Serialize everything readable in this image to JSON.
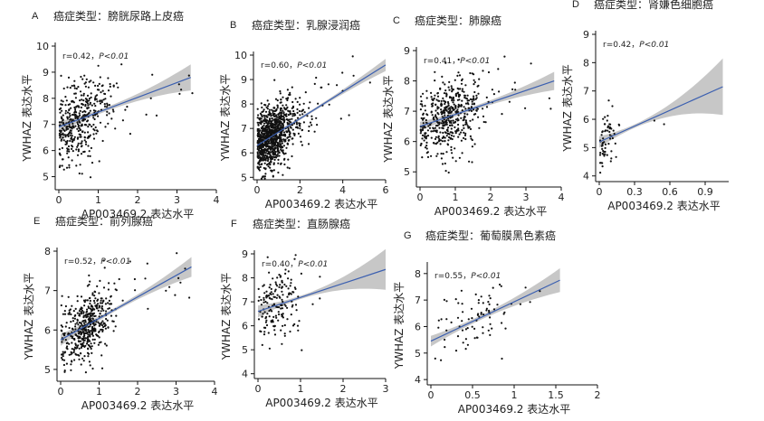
{
  "figure": {
    "background": "#ffffff"
  },
  "style": {
    "point_color": "#111111",
    "line_color": "#3b5fb0",
    "band_color": "#bdbdbd"
  },
  "chart_data": [
    {
      "panel": "A",
      "type": "scatter",
      "title": "癌症类型：膀胱尿路上皮癌",
      "xlabel": "AP003469.2 表达水平",
      "ylabel": "YWHAZ 表达水平",
      "xlim": [
        0,
        4
      ],
      "ylim": [
        4.5,
        10
      ],
      "xticks": [
        0,
        1,
        2,
        3,
        4
      ],
      "yticks": [
        5,
        6,
        7,
        8,
        9,
        10
      ],
      "stat_r": "r=0.42",
      "stat_sep": "，",
      "stat_p": "P<0.01",
      "fit": {
        "x0": 0,
        "y0": 6.9,
        "x1": 3.35,
        "y1": 8.8
      },
      "band": {
        "half_width_start": 0.2,
        "half_width_mid": 0.1,
        "half_width_end": 0.5
      },
      "points": {
        "n": 420,
        "x_mean": 0.5,
        "x_sd": 0.55,
        "x_max": 3.4,
        "y_sd": 0.75,
        "seed": 11
      }
    },
    {
      "panel": "B",
      "type": "scatter",
      "title": "癌症类型：乳腺浸润癌",
      "xlabel": "AP003469.2 表达水平",
      "ylabel": "YWHAZ 表达水平",
      "xlim": [
        0,
        6
      ],
      "ylim": [
        4.9,
        10
      ],
      "xticks": [
        0,
        2,
        4,
        6
      ],
      "yticks": [
        5,
        6,
        7,
        8,
        9,
        10
      ],
      "stat_r": "r=0.60",
      "stat_sep": "，",
      "stat_p": "P<0.01",
      "fit": {
        "x0": 0,
        "y0": 6.3,
        "x1": 6,
        "y1": 9.6
      },
      "band": {
        "half_width_start": 0.15,
        "half_width_mid": 0.06,
        "half_width_end": 0.25
      },
      "points": {
        "n": 1000,
        "x_mean": 0.7,
        "x_sd": 0.75,
        "x_max": 5.5,
        "y_sd": 0.6,
        "seed": 22
      }
    },
    {
      "panel": "C",
      "type": "scatter",
      "title": "癌症类型：肺腺癌",
      "xlabel": "AP003469.2 表达水平",
      "ylabel": "YWHAZ 表达水平",
      "xlim": [
        0,
        4
      ],
      "ylim": [
        4.5,
        9
      ],
      "xticks": [
        0,
        1,
        2,
        3,
        4
      ],
      "yticks": [
        5,
        6,
        7,
        8,
        9
      ],
      "stat_r": "r=0.41",
      "stat_sep": "，",
      "stat_p": "P<0.01",
      "fit": {
        "x0": 0,
        "y0": 6.5,
        "x1": 3.8,
        "y1": 8.0
      },
      "band": {
        "half_width_start": 0.15,
        "half_width_mid": 0.07,
        "half_width_end": 0.3
      },
      "points": {
        "n": 500,
        "x_mean": 0.8,
        "x_sd": 0.65,
        "x_max": 3.8,
        "y_sd": 0.6,
        "seed": 33
      }
    },
    {
      "panel": "D",
      "type": "scatter",
      "title": "癌症类型：肾嫌色细胞癌",
      "xlabel": "AP003469.2 表达水平",
      "ylabel": "YWHAZ 表达水平",
      "xlim": [
        0,
        1.1
      ],
      "ylim": [
        3.8,
        9
      ],
      "xticks": [
        0,
        0.3,
        0.6,
        0.9
      ],
      "yticks": [
        4,
        5,
        6,
        7,
        8,
        9
      ],
      "stat_r": "r=0.42",
      "stat_sep": "，",
      "stat_p": "P<0.01",
      "fit": {
        "x0": 0,
        "y0": 5.2,
        "x1": 1.05,
        "y1": 7.15
      },
      "band": {
        "half_width_start": 0.2,
        "half_width_mid": 0.15,
        "half_width_end": 1.0
      },
      "points": {
        "n": 65,
        "x_mean": 0.05,
        "x_sd": 0.08,
        "x_max": 1.05,
        "y_sd": 0.6,
        "seed": 44
      }
    },
    {
      "panel": "E",
      "type": "scatter",
      "title": "癌症类型：前列腺癌",
      "xlabel": "AP003469.2 表达水平",
      "ylabel": "YWHAZ 表达水平",
      "xlim": [
        0,
        4
      ],
      "ylim": [
        4.7,
        8
      ],
      "xticks": [
        0,
        1,
        2,
        3,
        4
      ],
      "yticks": [
        5,
        6,
        7,
        8
      ],
      "stat_r": "r=0.52",
      "stat_sep": "，",
      "stat_p": "P<0.01",
      "fit": {
        "x0": 0,
        "y0": 5.75,
        "x1": 3.4,
        "y1": 7.6
      },
      "band": {
        "half_width_start": 0.15,
        "half_width_mid": 0.05,
        "half_width_end": 0.25
      },
      "points": {
        "n": 480,
        "x_mean": 0.7,
        "x_sd": 0.45,
        "x_max": 3.5,
        "y_sd": 0.42,
        "seed": 55
      }
    },
    {
      "panel": "F",
      "type": "scatter",
      "title": "癌症类型：直肠腺癌",
      "xlabel": "AP003469.2 表达水平",
      "ylabel": "YWHAZ 表达水平",
      "xlim": [
        0,
        3
      ],
      "ylim": [
        3.8,
        9
      ],
      "xticks": [
        0,
        1,
        2,
        3
      ],
      "yticks": [
        4,
        5,
        6,
        7,
        8,
        9
      ],
      "stat_r": "r=0.40",
      "stat_sep": "，",
      "stat_p": "P<0.01",
      "fit": {
        "x0": 0,
        "y0": 6.6,
        "x1": 3,
        "y1": 8.35
      },
      "band": {
        "half_width_start": 0.25,
        "half_width_mid": 0.12,
        "half_width_end": 0.85
      },
      "points": {
        "n": 170,
        "x_mean": 0.45,
        "x_sd": 0.35,
        "x_max": 1.9,
        "y_sd": 0.7,
        "seed": 66
      }
    },
    {
      "panel": "G",
      "type": "scatter",
      "title": "癌症类型：葡萄膜黑色素癌",
      "xlabel": "AP003469.2 表达水平",
      "ylabel": "YWHAZ 表达水平",
      "xlim": [
        0,
        2.0
      ],
      "ylim": [
        3.8,
        8.3
      ],
      "xticks": [
        0,
        0.5,
        1.0,
        1.5,
        2.0
      ],
      "yticks": [
        4,
        5,
        6,
        7,
        8
      ],
      "stat_r": "r=0.55",
      "stat_sep": "，",
      "stat_p": "P<0.01",
      "fit": {
        "x0": 0,
        "y0": 5.45,
        "x1": 1.55,
        "y1": 7.75
      },
      "band": {
        "half_width_start": 0.2,
        "half_width_mid": 0.1,
        "half_width_end": 0.45
      },
      "points": {
        "n": 80,
        "x_mean": 0.5,
        "x_sd": 0.35,
        "x_max": 1.55,
        "y_sd": 0.55,
        "seed": 77
      }
    }
  ]
}
